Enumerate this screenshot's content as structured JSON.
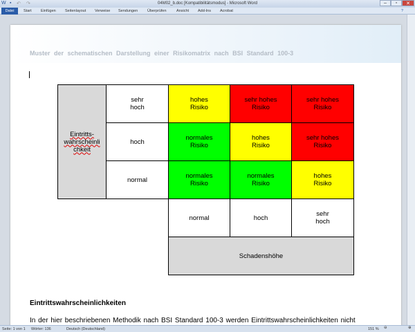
{
  "window": {
    "title": "04M02_b.doc [Kompatibilitätsmodus] - Microsoft Word"
  },
  "ribbon": {
    "tabs": [
      "Datei",
      "Start",
      "Einfügen",
      "Seitenlayout",
      "Verweise",
      "Sendungen",
      "Überprüfen",
      "Ansicht",
      "Add-Ins",
      "Acrobat"
    ]
  },
  "document": {
    "header": "Muster der schematischen Darstellung einer Risikomatrix nach BSI Standard 100-3",
    "matrix": {
      "y_axis_label": "Eintritts-\nwahrscheinli\nchkeit",
      "x_axis_label": "Schadenshöhe",
      "row_labels": [
        "sehr\nhoch",
        "hoch",
        "normal"
      ],
      "col_labels": [
        "normal",
        "hoch",
        "sehr\nhoch"
      ],
      "cells": [
        [
          "hohes\nRisiko",
          "sehr hohes\nRisiko",
          "sehr hohes\nRisiko"
        ],
        [
          "normales\nRisiko",
          "hohes\nRisiko",
          "sehr hohes\nRisiko"
        ],
        [
          "normales\nRisiko",
          "normales\nRisiko",
          "hohes\nRisiko"
        ]
      ],
      "cell_colors": [
        [
          "#ffff00",
          "#ff0000",
          "#ff0000"
        ],
        [
          "#00ff00",
          "#ffff00",
          "#ff0000"
        ],
        [
          "#00ff00",
          "#00ff00",
          "#ffff00"
        ]
      ]
    },
    "heading": "Eintrittswahrscheinlichkeiten",
    "paragraph": "In der hier beschriebenen Methodik nach BSI Standard 100-3 werden Eintrittswahrscheinlichkeiten nicht"
  },
  "status": {
    "page": "Seite: 1 von 1",
    "words": "Wörter: 136",
    "language": "Deutsch (Deutschland)",
    "zoom": "151 %"
  }
}
